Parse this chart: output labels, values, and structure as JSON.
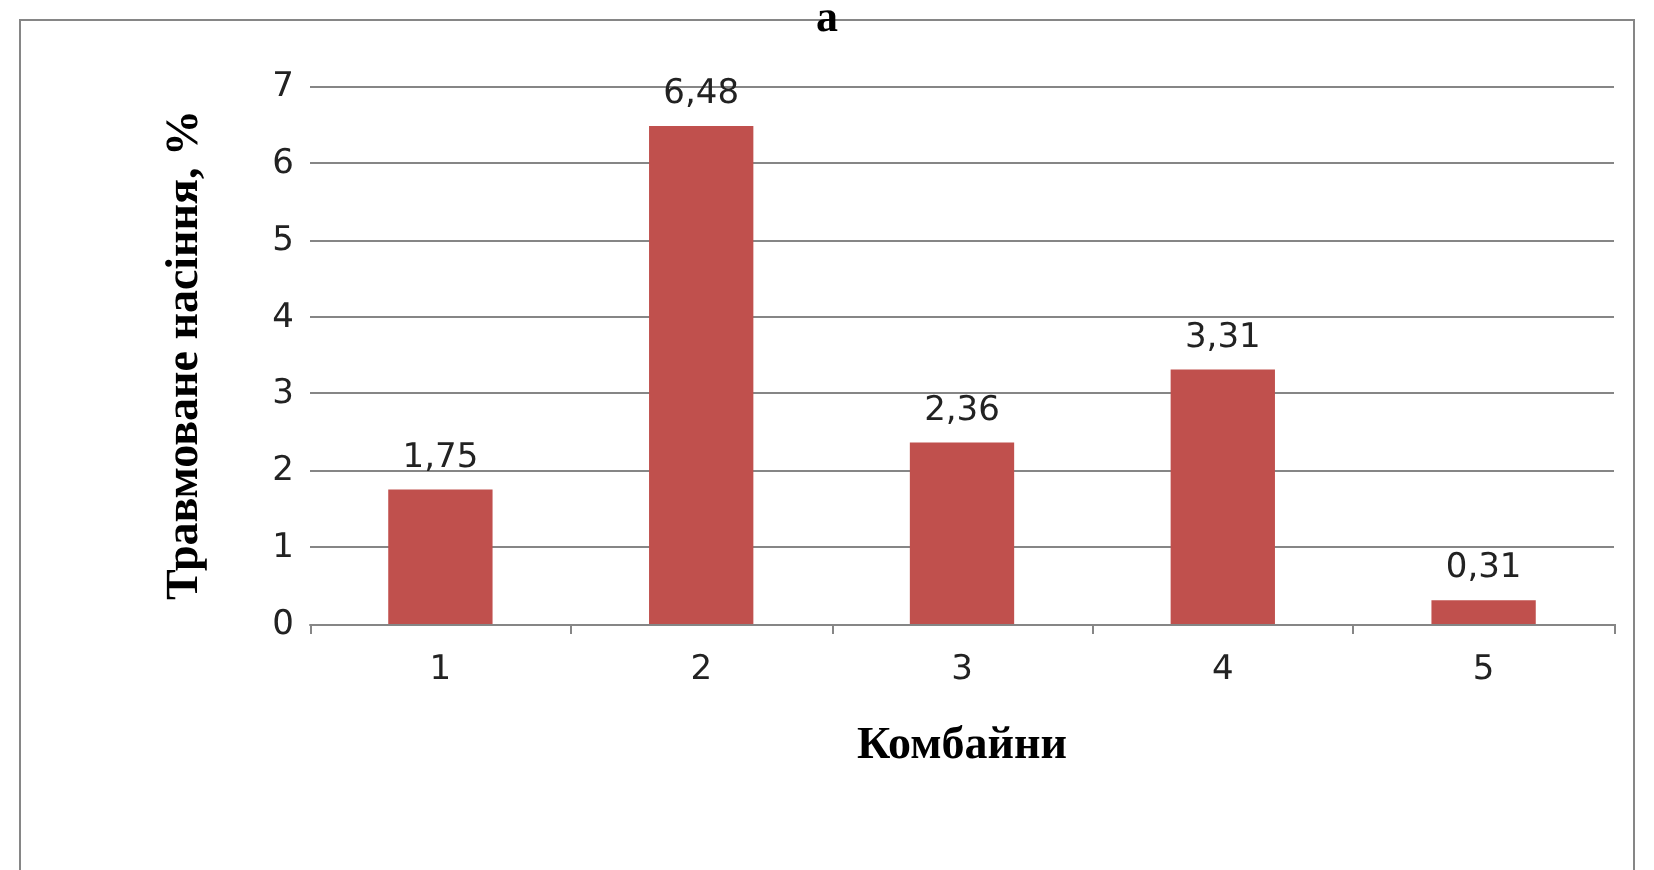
{
  "chart_data": {
    "type": "bar",
    "title": "а",
    "xlabel": "Комбайни",
    "ylabel": "Травмоване насіння, %",
    "categories": [
      "1",
      "2",
      "3",
      "4",
      "5"
    ],
    "values": [
      1.75,
      6.48,
      2.36,
      3.31,
      0.31
    ],
    "value_labels": [
      "1,75",
      "6,48",
      "2,36",
      "3,31",
      "0,31"
    ],
    "color": "#c0504d",
    "ylim": [
      0,
      7
    ],
    "yticks": [
      0,
      1,
      2,
      3,
      4,
      5,
      6,
      7
    ],
    "grid": "y"
  }
}
